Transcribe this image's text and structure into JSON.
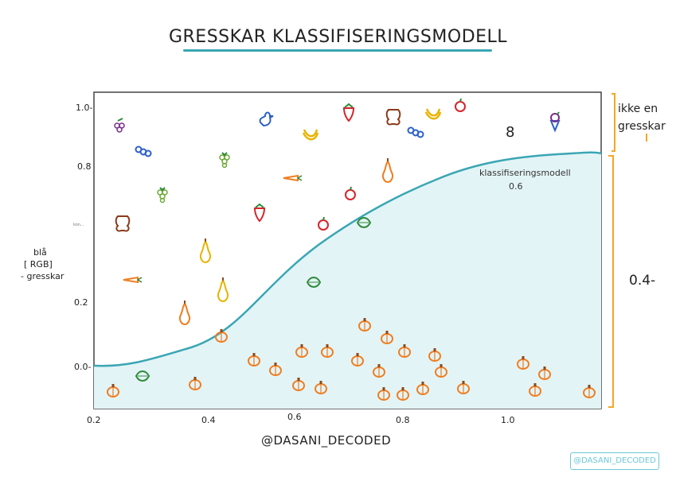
{
  "title": "GRESSKAR KLASSIFISERINGSMODELL",
  "y_ticks": [
    "1.0-",
    "0.8",
    "0.2",
    "0.0-"
  ],
  "x_ticks": [
    "0.2",
    "0.4",
    "0.6",
    "0.8",
    "1.0"
  ],
  "y_axis_title": [
    "blå",
    "[ RGB]",
    "- gresskar"
  ],
  "right_labels": {
    "top": [
      "ikke en",
      "gresskar"
    ],
    "bottom": "0.4-"
  },
  "curve_label": "klassifiseringsmodell",
  "curve_value": "0.6",
  "credit": "@DASANI_DECODED",
  "watermark": "@DASANI_DECODED",
  "stray_digit": "8",
  "tiny_label": "kon...",
  "colors": {
    "accent": "#3aa6b4",
    "fill": "#e3f4f6",
    "pumpkin": "#f07d1f",
    "bracket": "#f5a623"
  },
  "items_not_pumpkin": [
    "grapes-icon",
    "blue-beads-icon",
    "pretzel-icon",
    "bear-icon",
    "carrot-icon",
    "pear-icon",
    "strawberry-icon",
    "duck-icon",
    "banana-icon",
    "apple-core-icon",
    "apple-icon",
    "ice-cream-icon",
    "leaf-icon"
  ],
  "items_pumpkin": "pumpkin-icon"
}
